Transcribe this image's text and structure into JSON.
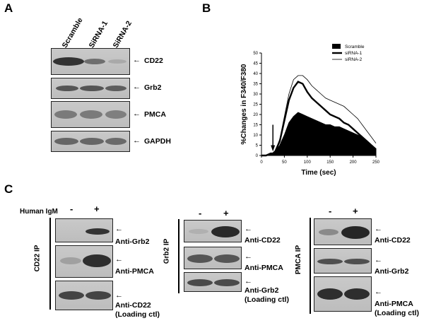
{
  "panels": {
    "a": {
      "letter": "A",
      "lanes": [
        "Scramble",
        "SiRNA-1",
        "SiRNA-2"
      ],
      "blots": [
        "CD22",
        "Grb2",
        "PMCA",
        "GAPDH"
      ]
    },
    "b": {
      "letter": "B"
    },
    "c": {
      "letter": "C",
      "treatment_label": "Human IgM",
      "minus": "-",
      "plus": "+",
      "groups": [
        {
          "ip": "CD22 IP",
          "blots": [
            "Anti-Grb2",
            "Anti-PMCA",
            "Anti-CD22"
          ],
          "loading": "(Loading ctl)"
        },
        {
          "ip": "Grb2 IP",
          "blots": [
            "Anti-CD22",
            "Anti-PMCA",
            "Anti-Grb2"
          ],
          "loading": "(Loading ctl)"
        },
        {
          "ip": "PMCA IP",
          "blots": [
            "Anti-CD22",
            "Anti-Grb2",
            "Anti-PMCA"
          ],
          "loading": "(Loading ctl)"
        }
      ]
    }
  },
  "chart_data": {
    "type": "area",
    "xlabel": "Time (sec)",
    "ylabel": "%Changes in F340/F380",
    "xlim": [
      0,
      250
    ],
    "ylim": [
      0,
      50
    ],
    "xticks": [
      0,
      50,
      100,
      150,
      200,
      250
    ],
    "yticks": [
      0,
      5,
      10,
      15,
      20,
      25,
      30,
      35,
      40,
      45,
      50
    ],
    "x": [
      0,
      10,
      20,
      25,
      30,
      40,
      50,
      60,
      70,
      80,
      90,
      100,
      110,
      120,
      130,
      140,
      150,
      160,
      170,
      180,
      190,
      200,
      210,
      220,
      230,
      240,
      250
    ],
    "series": [
      {
        "name": "Scramble",
        "style": "filled",
        "values": [
          0,
          0,
          1,
          1,
          2,
          5,
          10,
          16,
          19,
          21,
          20,
          19,
          18,
          17,
          16,
          15,
          15,
          14,
          14,
          13,
          12,
          11,
          10,
          9,
          7,
          5,
          3
        ]
      },
      {
        "name": "siRNA-1",
        "style": "thick",
        "values": [
          0,
          0,
          1,
          1,
          2,
          7,
          17,
          27,
          33,
          36,
          35,
          31,
          28,
          26,
          24,
          22,
          20,
          19,
          18,
          16,
          15,
          13,
          11,
          9,
          7,
          5,
          3
        ]
      },
      {
        "name": "siRNA-2",
        "style": "thin",
        "values": [
          0,
          0,
          1,
          1,
          2,
          8,
          19,
          30,
          37,
          39,
          39,
          37,
          34,
          32,
          30,
          28,
          27,
          26,
          25,
          24,
          22,
          20,
          18,
          15,
          12,
          9,
          6
        ]
      }
    ],
    "annotation": "stimulus arrow at ~25 sec",
    "stimulus_x": 25,
    "legend_position": "top-right"
  }
}
